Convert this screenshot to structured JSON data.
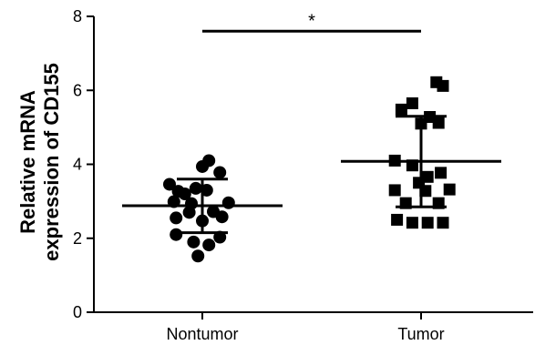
{
  "chart_data": {
    "type": "scatter",
    "title": "",
    "xlabel": "",
    "ylabel_lines": [
      "Relative mRNA",
      "expression of CD155"
    ],
    "ylim": [
      0,
      8
    ],
    "yticks": [
      0,
      2,
      4,
      6,
      8
    ],
    "categories": [
      "Nontumor",
      "Tumor"
    ],
    "grid": false,
    "legend": "none",
    "significance": {
      "label": "*",
      "between": [
        "Nontumor",
        "Tumor"
      ],
      "y": 7.6
    },
    "series": [
      {
        "category": "Nontumor",
        "marker": "circle",
        "mean": 2.88,
        "sd_low": 2.15,
        "sd_high": 3.6,
        "points": [
          {
            "dx": -0.15,
            "y": 3.46
          },
          {
            "dx": -0.11,
            "y": 3.27
          },
          {
            "dx": -0.08,
            "y": 3.2
          },
          {
            "dx": -0.03,
            "y": 3.35
          },
          {
            "dx": 0.0,
            "y": 3.94
          },
          {
            "dx": 0.03,
            "y": 4.1
          },
          {
            "dx": 0.08,
            "y": 3.78
          },
          {
            "dx": -0.13,
            "y": 2.99
          },
          {
            "dx": -0.05,
            "y": 2.94
          },
          {
            "dx": 0.02,
            "y": 3.3
          },
          {
            "dx": 0.12,
            "y": 2.96
          },
          {
            "dx": -0.12,
            "y": 2.55
          },
          {
            "dx": -0.06,
            "y": 2.7
          },
          {
            "dx": 0.0,
            "y": 2.47
          },
          {
            "dx": 0.05,
            "y": 2.72
          },
          {
            "dx": 0.09,
            "y": 2.58
          },
          {
            "dx": -0.12,
            "y": 2.1
          },
          {
            "dx": 0.08,
            "y": 2.03
          },
          {
            "dx": -0.04,
            "y": 1.9
          },
          {
            "dx": 0.03,
            "y": 1.82
          },
          {
            "dx": -0.02,
            "y": 1.52
          }
        ]
      },
      {
        "category": "Tumor",
        "marker": "square",
        "mean": 4.08,
        "sd_low": 2.85,
        "sd_high": 5.3,
        "points": [
          {
            "dx": 0.07,
            "y": 6.22
          },
          {
            "dx": 0.1,
            "y": 6.12
          },
          {
            "dx": -0.04,
            "y": 5.65
          },
          {
            "dx": -0.09,
            "y": 5.48
          },
          {
            "dx": 0.04,
            "y": 5.28
          },
          {
            "dx": 0.08,
            "y": 5.12
          },
          {
            "dx": 0.0,
            "y": 5.1
          },
          {
            "dx": -0.12,
            "y": 4.1
          },
          {
            "dx": -0.04,
            "y": 3.97
          },
          {
            "dx": 0.03,
            "y": 3.66
          },
          {
            "dx": 0.09,
            "y": 3.77
          },
          {
            "dx": -0.01,
            "y": 3.5
          },
          {
            "dx": -0.12,
            "y": 3.3
          },
          {
            "dx": 0.02,
            "y": 3.28
          },
          {
            "dx": 0.13,
            "y": 3.32
          },
          {
            "dx": -0.07,
            "y": 2.95
          },
          {
            "dx": 0.08,
            "y": 2.95
          },
          {
            "dx": -0.11,
            "y": 2.5
          },
          {
            "dx": -0.04,
            "y": 2.42
          },
          {
            "dx": 0.03,
            "y": 2.42
          },
          {
            "dx": 0.1,
            "y": 2.42
          }
        ]
      }
    ]
  }
}
